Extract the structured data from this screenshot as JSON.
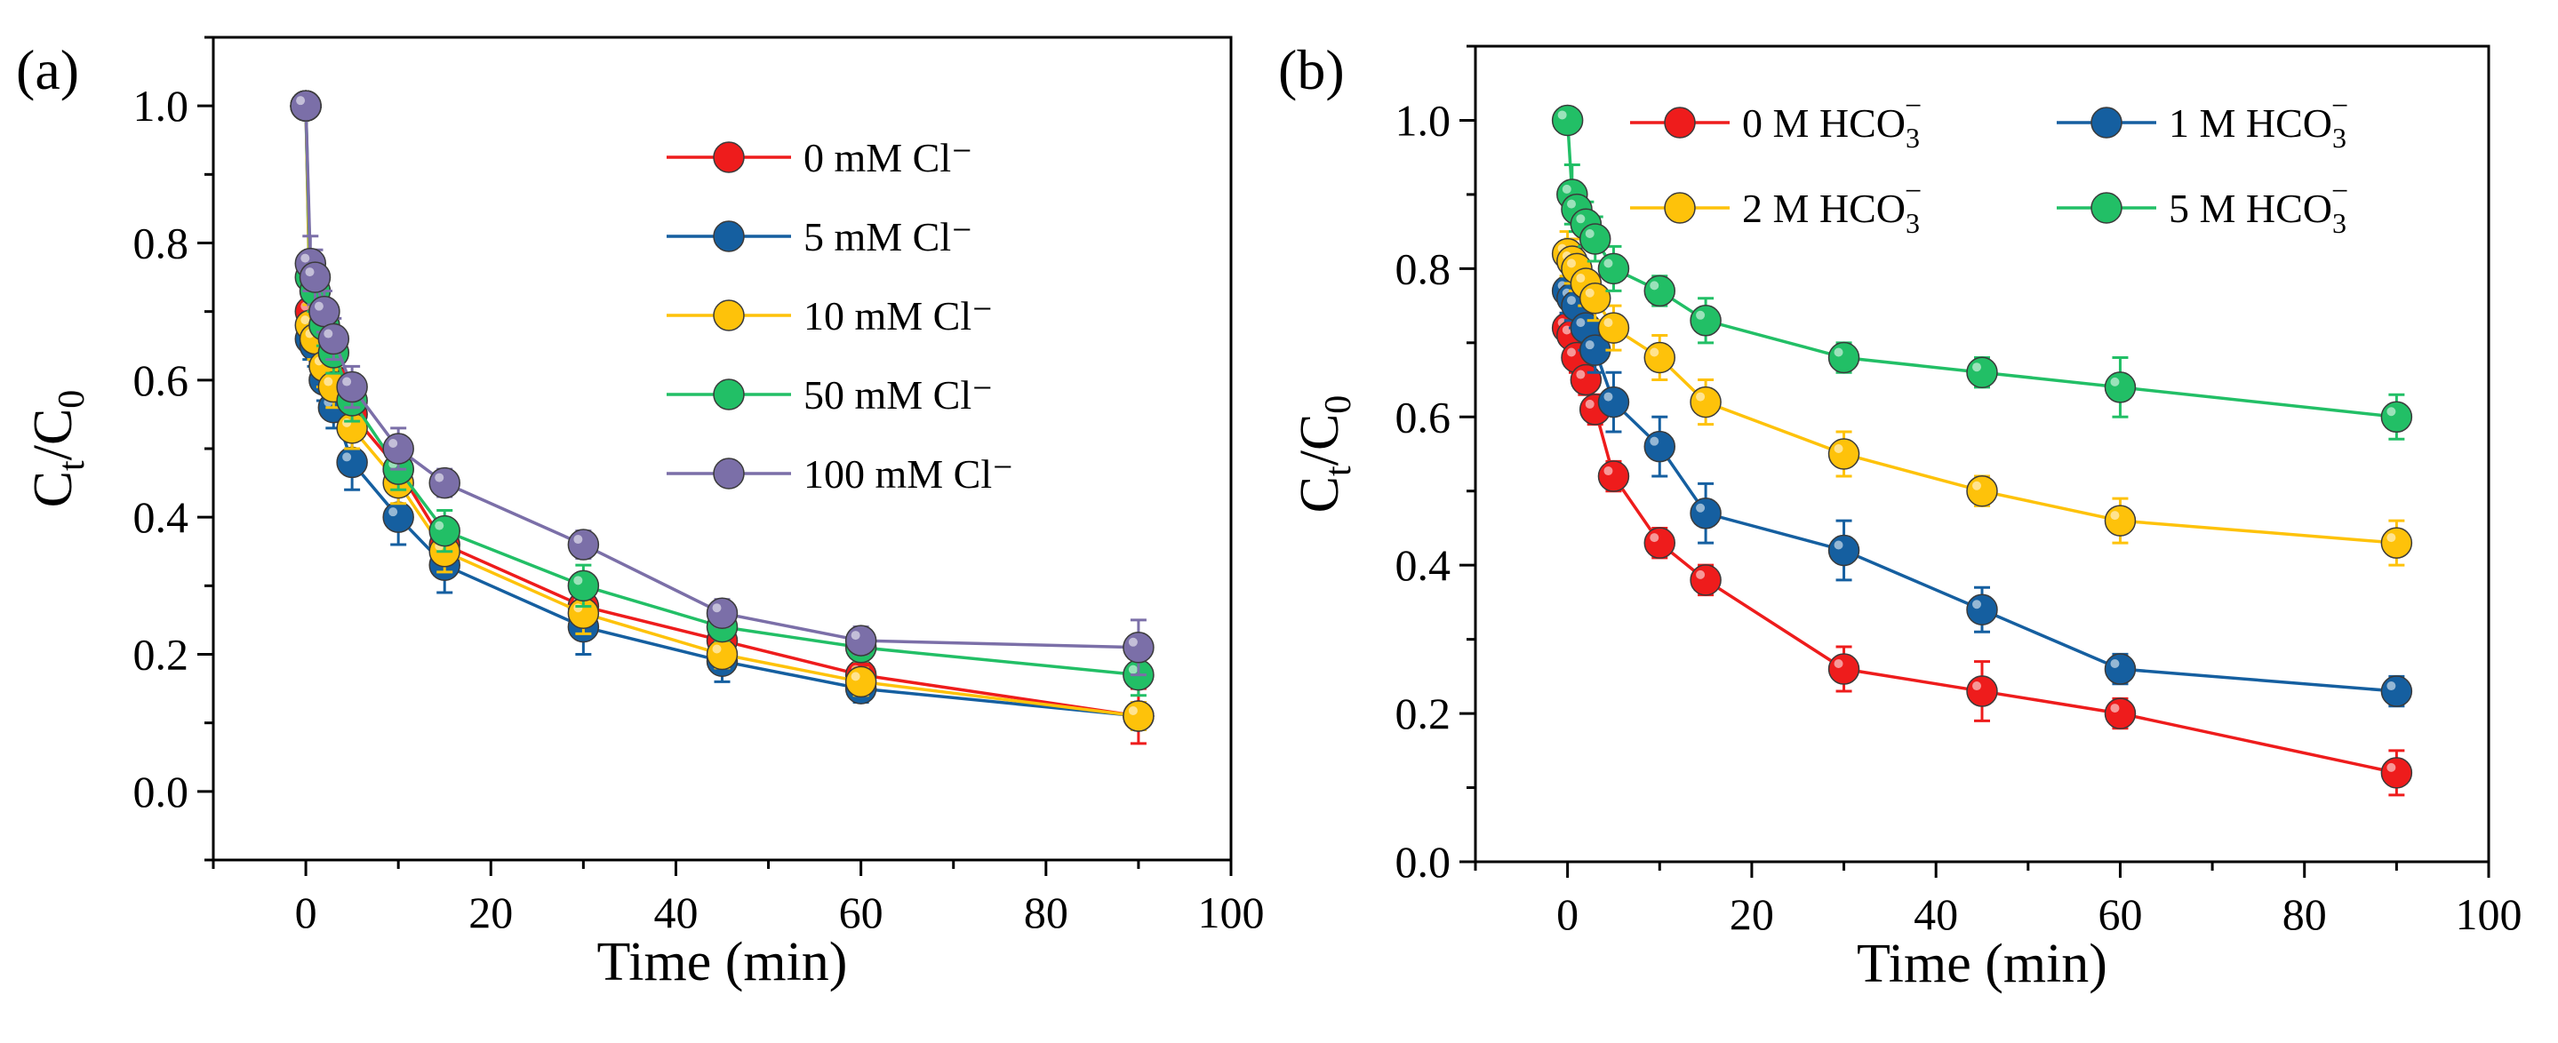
{
  "chart_data": [
    {
      "type": "line",
      "panel_label": "(a)",
      "xlabel": "Time (min)",
      "ylabel": {
        "base": "C",
        "sub1": "t",
        "sep": "/C",
        "sub2": "0"
      },
      "xlim": [
        -10,
        100
      ],
      "ylim": [
        -0.1,
        1.1
      ],
      "xticks": [
        0,
        20,
        40,
        60,
        80,
        100
      ],
      "yticks": [
        0.0,
        0.2,
        0.4,
        0.6,
        0.8,
        1.0
      ],
      "xtick_labels": [
        "0",
        "20",
        "40",
        "60",
        "80",
        "100"
      ],
      "ytick_labels": [
        "0.0",
        "0.2",
        "0.4",
        "0.6",
        "0.8",
        "1.0"
      ],
      "legend_position": "top-right",
      "x": [
        0,
        0.5,
        1,
        2,
        3,
        5,
        10,
        15,
        30,
        45,
        60,
        90
      ],
      "series": [
        {
          "name": "0 mM Cl⁻",
          "legend": {
            "text": "0 mM Cl⁻"
          },
          "color": "#ee1c1c",
          "values": [
            1.0,
            0.7,
            0.68,
            0.63,
            0.6,
            0.55,
            0.47,
            0.36,
            0.27,
            0.22,
            0.17,
            0.11
          ],
          "errors": [
            0,
            0.04,
            0.04,
            0.04,
            0.03,
            0.03,
            0.03,
            0.03,
            0.03,
            0.02,
            0.02,
            0.04
          ]
        },
        {
          "name": "5 mM Cl⁻",
          "legend": {
            "text": "5 mM Cl⁻"
          },
          "color": "#155fa0",
          "values": [
            1.0,
            0.66,
            0.65,
            0.6,
            0.56,
            0.48,
            0.4,
            0.33,
            0.24,
            0.19,
            0.15,
            0.11
          ],
          "errors": [
            0,
            0.03,
            0.03,
            0.03,
            0.03,
            0.04,
            0.04,
            0.04,
            0.04,
            0.03,
            0.02,
            0.02
          ]
        },
        {
          "name": "10 mM Cl⁻",
          "legend": {
            "text": "10 mM Cl⁻"
          },
          "color": "#fec20a",
          "values": [
            1.0,
            0.68,
            0.66,
            0.62,
            0.59,
            0.53,
            0.45,
            0.35,
            0.26,
            0.2,
            0.16,
            0.11
          ],
          "errors": [
            0,
            0.03,
            0.03,
            0.03,
            0.03,
            0.03,
            0.03,
            0.03,
            0.03,
            0.02,
            0.02,
            0.02
          ]
        },
        {
          "name": "50 mM Cl⁻",
          "legend": {
            "text": "50 mM Cl⁻"
          },
          "color": "#22bf66",
          "values": [
            1.0,
            0.75,
            0.73,
            0.68,
            0.64,
            0.57,
            0.47,
            0.38,
            0.3,
            0.24,
            0.21,
            0.17
          ],
          "errors": [
            0,
            0.03,
            0.03,
            0.03,
            0.03,
            0.03,
            0.03,
            0.03,
            0.03,
            0.02,
            0.02,
            0.03
          ]
        },
        {
          "name": "100 mM Cl⁻",
          "legend": {
            "text": "100 mM Cl⁻"
          },
          "color": "#7b6fa8",
          "values": [
            1.0,
            0.77,
            0.75,
            0.7,
            0.66,
            0.59,
            0.5,
            0.45,
            0.36,
            0.26,
            0.22,
            0.21
          ],
          "errors": [
            0,
            0.04,
            0.04,
            0.03,
            0.03,
            0.03,
            0.03,
            0.02,
            0.02,
            0.02,
            0.02,
            0.04
          ]
        }
      ]
    },
    {
      "type": "line",
      "panel_label": "(b)",
      "xlabel": "Time (min)",
      "ylabel": {
        "base": "C",
        "sub1": "t",
        "sep": "/C",
        "sub2": "0"
      },
      "xlim": [
        -10,
        100
      ],
      "ylim": [
        0.0,
        1.1
      ],
      "xticks": [
        0,
        20,
        40,
        60,
        80,
        100
      ],
      "yticks": [
        0.0,
        0.2,
        0.4,
        0.6,
        0.8,
        1.0
      ],
      "xtick_labels": [
        "0",
        "20",
        "40",
        "60",
        "80",
        "100"
      ],
      "ytick_labels": [
        "0.0",
        "0.2",
        "0.4",
        "0.6",
        "0.8",
        "1.0"
      ],
      "legend_position": "top-right",
      "x": [
        0,
        0.5,
        1,
        2,
        3,
        5,
        10,
        15,
        30,
        45,
        60,
        90
      ],
      "series": [
        {
          "name": "0 M HCO3⁻",
          "legend": {
            "prefix": "0 M HCO",
            "sub": "3",
            "sup": "−"
          },
          "color": "#ee1c1c",
          "values": [
            0.72,
            0.71,
            0.68,
            0.65,
            0.61,
            0.52,
            0.43,
            0.38,
            0.26,
            0.23,
            0.2,
            0.12
          ],
          "errors": [
            0.02,
            0.02,
            0.02,
            0.02,
            0.02,
            0.02,
            0.02,
            0.02,
            0.03,
            0.04,
            0.02,
            0.03
          ]
        },
        {
          "name": "1 M HCO3⁻",
          "legend": {
            "prefix": "1 M HCO",
            "sub": "3",
            "sup": "−"
          },
          "color": "#155fa0",
          "values": [
            0.77,
            0.76,
            0.75,
            0.72,
            0.69,
            0.62,
            0.56,
            0.47,
            0.42,
            0.34,
            0.26,
            0.23
          ],
          "errors": [
            0.03,
            0.03,
            0.03,
            0.03,
            0.03,
            0.04,
            0.04,
            0.04,
            0.04,
            0.03,
            0.02,
            0.02
          ]
        },
        {
          "name": "2 M HCO3⁻",
          "legend": {
            "prefix": "2 M HCO",
            "sub": "3",
            "sup": "−"
          },
          "color": "#fec20a",
          "values": [
            0.82,
            0.81,
            0.8,
            0.78,
            0.76,
            0.72,
            0.68,
            0.62,
            0.55,
            0.5,
            0.46,
            0.43
          ],
          "errors": [
            0.03,
            0.03,
            0.03,
            0.03,
            0.03,
            0.03,
            0.03,
            0.03,
            0.03,
            0.02,
            0.03,
            0.03
          ]
        },
        {
          "name": "5 M HCO3⁻",
          "legend": {
            "prefix": "5 M HCO",
            "sub": "3",
            "sup": "−"
          },
          "color": "#22bf66",
          "values": [
            1.0,
            0.9,
            0.88,
            0.86,
            0.84,
            0.8,
            0.77,
            0.73,
            0.68,
            0.66,
            0.64,
            0.6
          ],
          "errors": [
            0,
            0.04,
            0.03,
            0.03,
            0.03,
            0.03,
            0.02,
            0.03,
            0.02,
            0.02,
            0.04,
            0.03
          ]
        }
      ]
    }
  ]
}
